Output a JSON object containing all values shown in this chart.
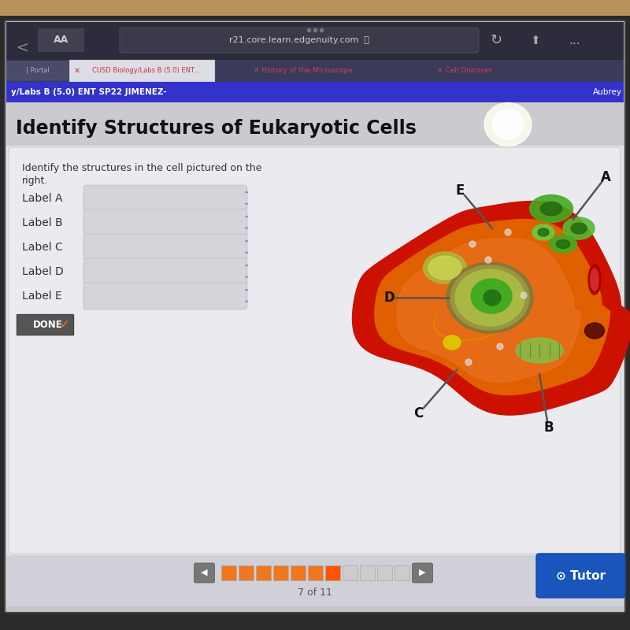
{
  "outer_bg": "#1e1e1e",
  "laptop_bg": "#888880",
  "screen_bg": "#c8c8cc",
  "browser_bar_bg": "#2d2d3a",
  "tab_bar_bg": "#3a3a5a",
  "active_tab_bg": "#e2e2e8",
  "inactive_tab_bg": "#4a4a6a",
  "nav_bar_bg": "#3535aa",
  "page_title_bg": "#d8d8e0",
  "content_bg": "#e6e6ea",
  "inner_panel_bg": "#ebebef",
  "title_text": "Identify Structures of Eukaryotic Cells",
  "title_color": "#111111",
  "label_names": [
    "Label A",
    "Label B",
    "Label C",
    "Label D",
    "Label E"
  ],
  "instruction_line1": "Identify the structures in the cell pictured on the",
  "instruction_line2": "right.",
  "dropdown_bg": "#d0d0d5",
  "dropdown_border": "#aaaaaa",
  "done_box_bg": "#555555",
  "done_text_color": "#ffffff",
  "check_color": "#ff6600",
  "cell_label_letters": [
    "A",
    "B",
    "C",
    "D",
    "E"
  ],
  "cell_outer_color": "#cc1100",
  "cell_inner_color": "#e06000",
  "cell_cytoplasm_color": "#dd7000",
  "nucleus_outer": "#887755",
  "nucleus_mid": "#aab040",
  "nucleus_inner": "#55aa33",
  "nav_squares_filled": 6,
  "nav_squares_orange": 7,
  "nav_squares_total": 11,
  "nav_bg": "#c8c8cc",
  "tutor_bg": "#1a55bb",
  "bottom_bg": "#c0c0c8",
  "url_bar_bg": "#f0f0f0",
  "glow_color": "#fffff0"
}
